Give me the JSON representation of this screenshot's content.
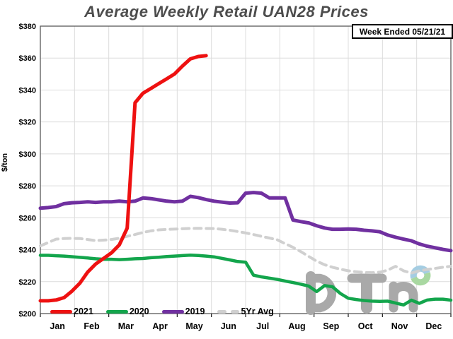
{
  "title": "Average Weekly Retail UAN28 Prices",
  "week_ended_label": "Week Ended 05/21/21",
  "watermark": "DTN",
  "colors": {
    "title_text": "#4d4d4d",
    "grid": "#dcdcdc",
    "axis_border": "#595959",
    "tick": "#1a1a1a",
    "series_2021": "#ee1111",
    "series_2020": "#13a54c",
    "series_2019": "#7030a0",
    "series_5yr": "#d0d0d0",
    "logo_gray": "#a9a9a9",
    "logo_donut_blue": "#a5cde2",
    "logo_donut_green": "#a9d8a1"
  },
  "chart_data": {
    "type": "line",
    "title": "Average Weekly Retail UAN28 Prices",
    "xlabel": "",
    "ylabel": "$/ton",
    "ylim": [
      200,
      380
    ],
    "y_tick_step": 20,
    "grid": true,
    "legend_position": "bottom-inside",
    "x_unit": "week",
    "x_weeks": 52,
    "y_tick_labels": [
      "$380",
      "$360",
      "$340",
      "$320",
      "$300",
      "$280",
      "$260",
      "$240",
      "$220",
      "$200"
    ],
    "x_tick_labels": [
      "Jan",
      "Feb",
      "Mar",
      "Apr",
      "May",
      "Jun",
      "Jul",
      "Aug",
      "Sep",
      "Oct",
      "Nov",
      "Dec"
    ],
    "series": [
      {
        "name": "2021",
        "color": "#ee1111",
        "style": "solid",
        "x_start": 0,
        "values": [
          208,
          208,
          208.5,
          210,
          214,
          219,
          226,
          231,
          234.5,
          238,
          243,
          253.5,
          332,
          338,
          341,
          344,
          347,
          350,
          355,
          359.5,
          361,
          361.5
        ]
      },
      {
        "name": "2020",
        "color": "#13a54c",
        "style": "solid",
        "x_start": 0,
        "values": [
          236.5,
          236.5,
          236.2,
          236,
          235.6,
          235.2,
          234.8,
          234.3,
          234,
          234,
          233.8,
          234,
          234.3,
          234.5,
          235,
          235.3,
          235.7,
          236,
          236.3,
          236.6,
          236.4,
          236,
          235.5,
          234.6,
          233.6,
          232.6,
          232.2,
          224,
          223,
          222.2,
          221.4,
          220.4,
          219.4,
          218.4,
          217.2,
          213.8,
          217.5,
          216.8,
          212.6,
          209.6,
          208.8,
          208.2,
          207.8,
          207.6,
          207.8,
          206.6,
          205.4,
          208.4,
          206.4,
          208.5,
          209,
          209,
          208.4
        ]
      },
      {
        "name": "2019",
        "color": "#7030a0",
        "style": "solid",
        "x_start": 0,
        "values": [
          266,
          266.4,
          267,
          268.8,
          269.4,
          269.6,
          270,
          269.6,
          270,
          270,
          270.4,
          270,
          270.4,
          272.4,
          272,
          271.2,
          270.4,
          270,
          270.4,
          273.4,
          272.6,
          271.4,
          270.4,
          269.8,
          269.2,
          269.4,
          275.4,
          275.8,
          275.4,
          272.4,
          272.4,
          272.4,
          258.6,
          257.6,
          256.8,
          255,
          253.6,
          252.8,
          252.8,
          253,
          252.8,
          252.2,
          251.8,
          251.2,
          249.2,
          247.8,
          246.6,
          245.6,
          243.6,
          242.2,
          241.2,
          240.2,
          239.4
        ]
      },
      {
        "name": "5Yr Avg",
        "color": "#d0d0d0",
        "style": "dashed",
        "x_start": 0,
        "values": [
          242.4,
          244.5,
          246.6,
          247,
          247.1,
          247,
          246.4,
          245.7,
          246,
          246.4,
          247.2,
          248.4,
          249.5,
          250.8,
          251.8,
          252.4,
          252.7,
          252.9,
          253.1,
          253.3,
          253.4,
          253.3,
          253.2,
          252.8,
          252.2,
          251.4,
          250.5,
          249.5,
          248.4,
          247.3,
          246.2,
          243.8,
          241.5,
          238.8,
          235.8,
          232.8,
          230.6,
          229,
          227.8,
          226.8,
          226.2,
          225.8,
          225.6,
          225.9,
          227.2,
          229.6,
          226.8,
          225.4,
          226.8,
          227.6,
          228.3,
          229,
          229.6
        ]
      }
    ]
  }
}
